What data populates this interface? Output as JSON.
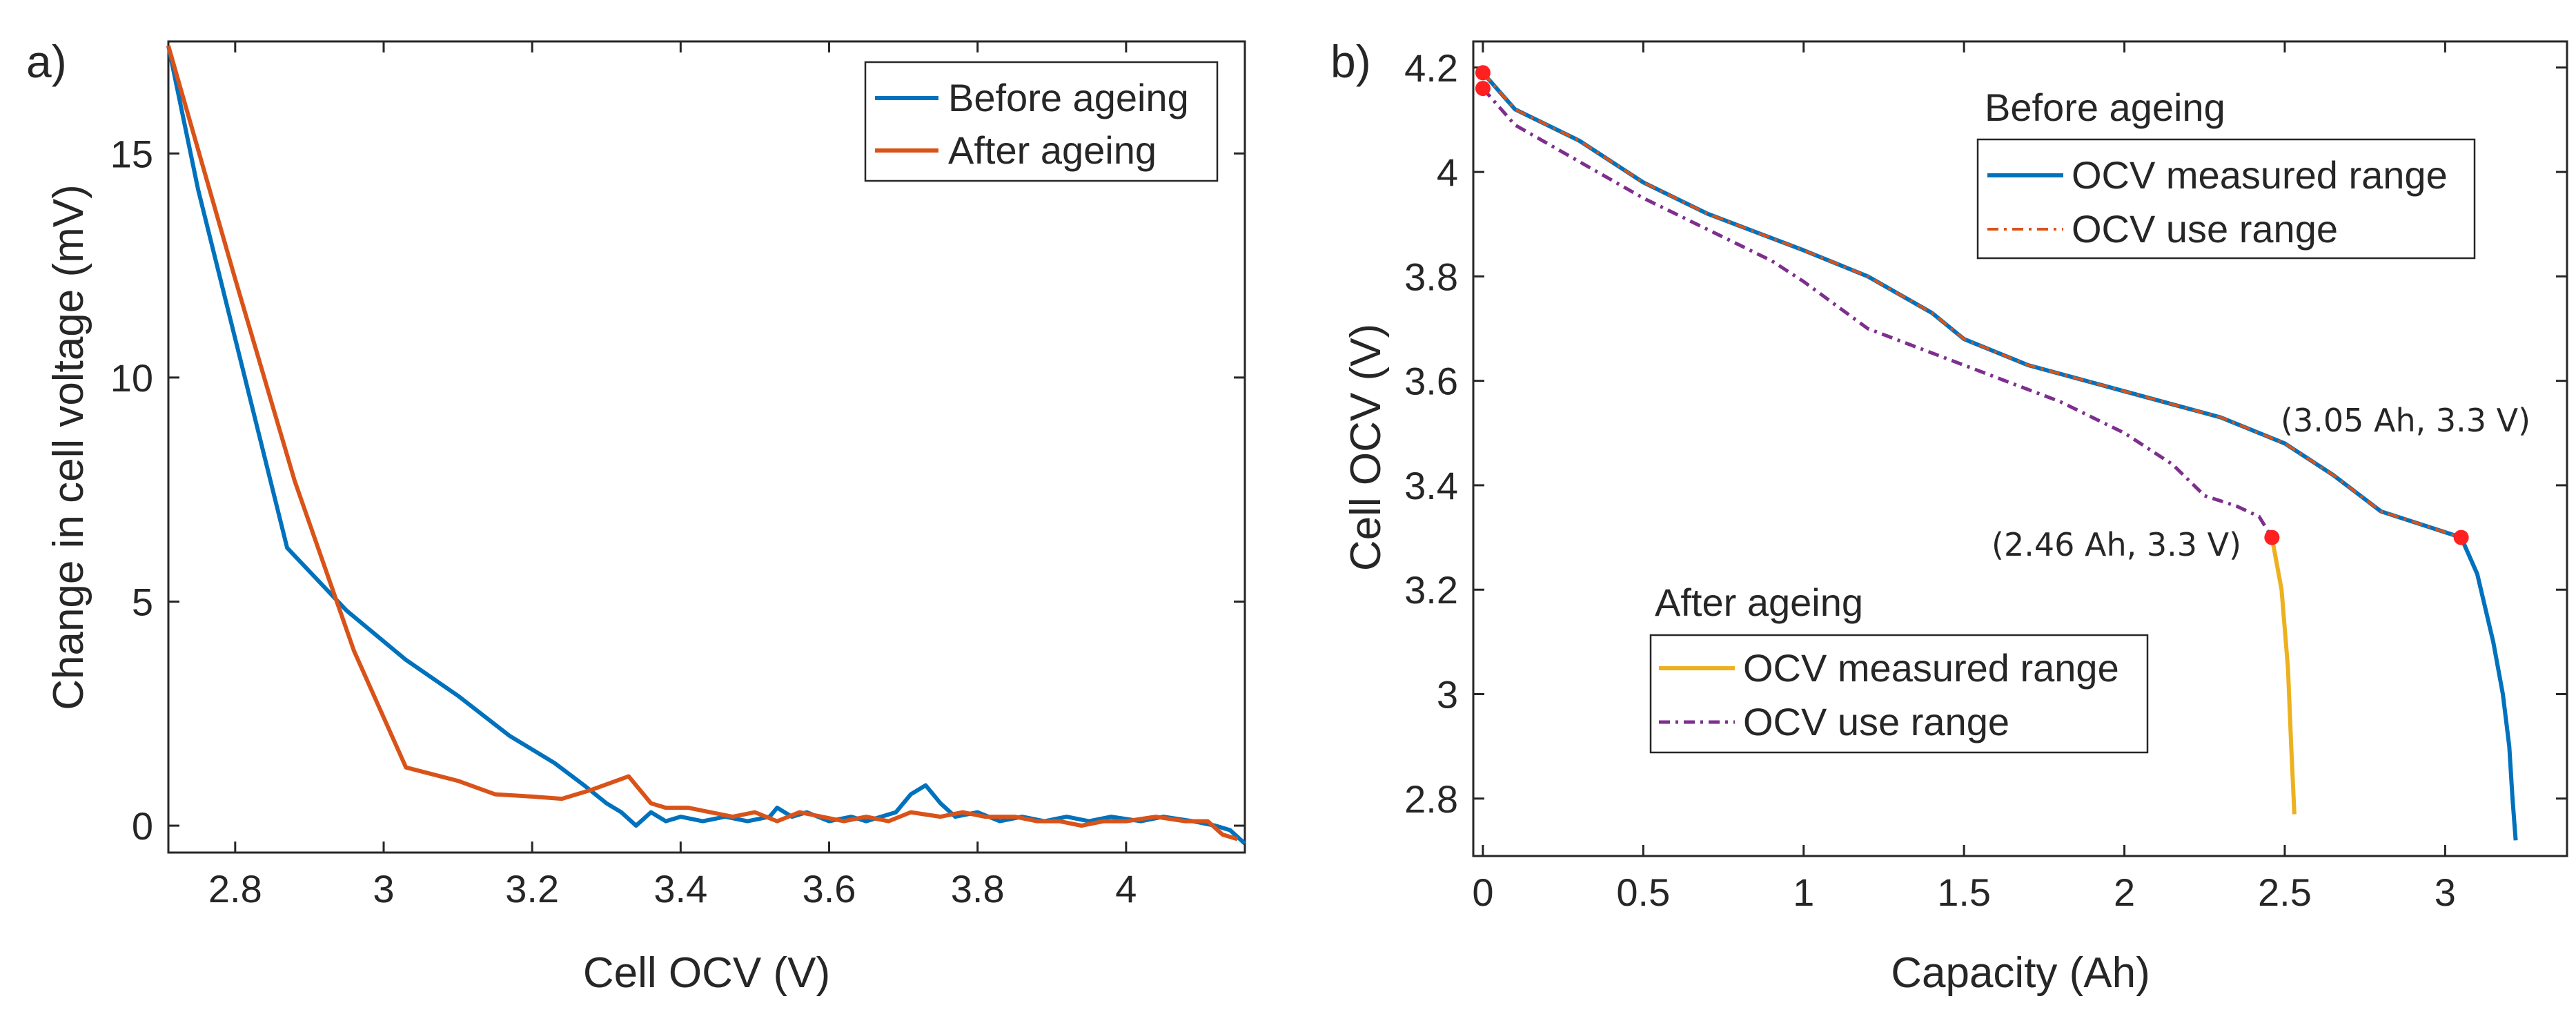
{
  "chart_data": [
    {
      "type": "line",
      "panel_label": "a)",
      "xlabel": "Cell OCV (V)",
      "ylabel": "Change in cell voltage (mV)",
      "xlim": [
        2.71,
        4.16
      ],
      "ylim": [
        -0.6,
        17.5
      ],
      "xticks": [
        2.8,
        3,
        3.2,
        3.4,
        3.6,
        3.8,
        4
      ],
      "xtick_labels": [
        "2.8",
        "3",
        "3.2",
        "3.4",
        "3.6",
        "3.8",
        "4"
      ],
      "yticks": [
        0,
        5,
        10,
        15
      ],
      "ytick_labels": [
        "0",
        "5",
        "10",
        "15"
      ],
      "legend_position": "top-right",
      "series": [
        {
          "name": "Before ageing",
          "color": "#0072BD",
          "points": [
            [
              2.71,
              17.4
            ],
            [
              2.75,
              14.2
            ],
            [
              2.81,
              10.2
            ],
            [
              2.87,
              6.2
            ],
            [
              2.95,
              4.8
            ],
            [
              3.03,
              3.7
            ],
            [
              3.1,
              2.9
            ],
            [
              3.17,
              2.0
            ],
            [
              3.23,
              1.4
            ],
            [
              3.27,
              0.9
            ],
            [
              3.3,
              0.5
            ],
            [
              3.32,
              0.3
            ],
            [
              3.34,
              0.0
            ],
            [
              3.36,
              0.3
            ],
            [
              3.38,
              0.1
            ],
            [
              3.4,
              0.2
            ],
            [
              3.43,
              0.1
            ],
            [
              3.46,
              0.2
            ],
            [
              3.49,
              0.1
            ],
            [
              3.52,
              0.2
            ],
            [
              3.53,
              0.4
            ],
            [
              3.55,
              0.2
            ],
            [
              3.57,
              0.3
            ],
            [
              3.6,
              0.1
            ],
            [
              3.63,
              0.2
            ],
            [
              3.65,
              0.1
            ],
            [
              3.67,
              0.2
            ],
            [
              3.69,
              0.3
            ],
            [
              3.71,
              0.7
            ],
            [
              3.73,
              0.9
            ],
            [
              3.75,
              0.5
            ],
            [
              3.77,
              0.2
            ],
            [
              3.8,
              0.3
            ],
            [
              3.83,
              0.1
            ],
            [
              3.86,
              0.2
            ],
            [
              3.89,
              0.1
            ],
            [
              3.92,
              0.2
            ],
            [
              3.95,
              0.1
            ],
            [
              3.98,
              0.2
            ],
            [
              4.02,
              0.1
            ],
            [
              4.05,
              0.2
            ],
            [
              4.09,
              0.1
            ],
            [
              4.12,
              0.0
            ],
            [
              4.14,
              -0.1
            ],
            [
              4.16,
              -0.4
            ]
          ]
        },
        {
          "name": "After ageing",
          "color": "#D95319",
          "points": [
            [
              2.71,
              17.4
            ],
            [
              2.8,
              12.2
            ],
            [
              2.88,
              7.7
            ],
            [
              2.96,
              3.9
            ],
            [
              3.03,
              1.3
            ],
            [
              3.1,
              1.0
            ],
            [
              3.15,
              0.7
            ],
            [
              3.2,
              0.65
            ],
            [
              3.24,
              0.6
            ],
            [
              3.28,
              0.8
            ],
            [
              3.33,
              1.1
            ],
            [
              3.36,
              0.5
            ],
            [
              3.38,
              0.4
            ],
            [
              3.41,
              0.4
            ],
            [
              3.44,
              0.3
            ],
            [
              3.47,
              0.2
            ],
            [
              3.5,
              0.3
            ],
            [
              3.53,
              0.1
            ],
            [
              3.56,
              0.3
            ],
            [
              3.59,
              0.2
            ],
            [
              3.62,
              0.1
            ],
            [
              3.65,
              0.2
            ],
            [
              3.68,
              0.1
            ],
            [
              3.71,
              0.3
            ],
            [
              3.75,
              0.2
            ],
            [
              3.78,
              0.3
            ],
            [
              3.81,
              0.2
            ],
            [
              3.85,
              0.2
            ],
            [
              3.88,
              0.1
            ],
            [
              3.91,
              0.1
            ],
            [
              3.94,
              0.0
            ],
            [
              3.97,
              0.1
            ],
            [
              4.0,
              0.1
            ],
            [
              4.04,
              0.2
            ],
            [
              4.08,
              0.1
            ],
            [
              4.11,
              0.1
            ],
            [
              4.13,
              -0.2
            ],
            [
              4.15,
              -0.3
            ]
          ]
        }
      ]
    },
    {
      "type": "line",
      "panel_label": "b)",
      "xlabel": "Capacity (Ah)",
      "ylabel": "Cell OCV (V)",
      "xlim": [
        -0.03,
        3.38
      ],
      "ylim": [
        2.69,
        4.25
      ],
      "xticks": [
        0,
        0.5,
        1,
        1.5,
        2,
        2.5,
        3
      ],
      "xtick_labels": [
        "0",
        "0.5",
        "1",
        "1.5",
        "2",
        "2.5",
        "3"
      ],
      "yticks": [
        2.8,
        3,
        3.2,
        3.4,
        3.6,
        3.8,
        4,
        4.2
      ],
      "ytick_labels": [
        "2.8",
        "3",
        "3.2",
        "3.4",
        "3.6",
        "3.8",
        "4",
        "4.2"
      ],
      "legends": [
        {
          "title": "Before ageing",
          "position": "top-right",
          "entries": [
            "OCV measured range",
            "OCV use range"
          ]
        },
        {
          "title": "After ageing",
          "position": "bottom-center",
          "entries": [
            "OCV measured range",
            "OCV use range"
          ]
        }
      ],
      "series": [
        {
          "name": "Before ageing - OCV measured range",
          "color": "#0072BD",
          "style": "solid",
          "points": [
            [
              0,
              4.19
            ],
            [
              0.1,
              4.12
            ],
            [
              0.3,
              4.06
            ],
            [
              0.5,
              3.98
            ],
            [
              0.7,
              3.92
            ],
            [
              1.0,
              3.85
            ],
            [
              1.2,
              3.8
            ],
            [
              1.4,
              3.73
            ],
            [
              1.5,
              3.68
            ],
            [
              1.7,
              3.63
            ],
            [
              2.0,
              3.58
            ],
            [
              2.3,
              3.53
            ],
            [
              2.5,
              3.48
            ],
            [
              2.65,
              3.42
            ],
            [
              2.8,
              3.35
            ],
            [
              3.0,
              3.31
            ],
            [
              3.05,
              3.3
            ],
            [
              3.1,
              3.23
            ],
            [
              3.15,
              3.1
            ],
            [
              3.18,
              3.0
            ],
            [
              3.2,
              2.9
            ],
            [
              3.21,
              2.8
            ],
            [
              3.22,
              2.72
            ]
          ]
        },
        {
          "name": "Before ageing - OCV use range",
          "color": "#D95319",
          "style": "dashdot",
          "points": [
            [
              0,
              4.19
            ],
            [
              0.1,
              4.12
            ],
            [
              0.3,
              4.06
            ],
            [
              0.5,
              3.98
            ],
            [
              0.7,
              3.92
            ],
            [
              1.0,
              3.85
            ],
            [
              1.2,
              3.8
            ],
            [
              1.4,
              3.73
            ],
            [
              1.5,
              3.68
            ],
            [
              1.7,
              3.63
            ],
            [
              2.0,
              3.58
            ],
            [
              2.3,
              3.53
            ],
            [
              2.5,
              3.48
            ],
            [
              2.65,
              3.42
            ],
            [
              2.8,
              3.35
            ],
            [
              3.0,
              3.31
            ],
            [
              3.05,
              3.3
            ]
          ]
        },
        {
          "name": "After ageing - OCV measured range",
          "color": "#EDB120",
          "style": "solid",
          "points": [
            [
              2.46,
              3.3
            ],
            [
              2.49,
              3.2
            ],
            [
              2.51,
              3.05
            ],
            [
              2.52,
              2.9
            ],
            [
              2.53,
              2.77
            ]
          ]
        },
        {
          "name": "After ageing - OCV use range",
          "color": "#7E2F8E",
          "style": "dashdot",
          "points": [
            [
              0,
              4.16
            ],
            [
              0.1,
              4.09
            ],
            [
              0.3,
              4.02
            ],
            [
              0.5,
              3.95
            ],
            [
              0.7,
              3.89
            ],
            [
              0.9,
              3.83
            ],
            [
              1.0,
              3.79
            ],
            [
              1.2,
              3.7
            ],
            [
              1.5,
              3.63
            ],
            [
              1.8,
              3.56
            ],
            [
              2.0,
              3.5
            ],
            [
              2.15,
              3.44
            ],
            [
              2.25,
              3.38
            ],
            [
              2.35,
              3.36
            ],
            [
              2.42,
              3.34
            ],
            [
              2.46,
              3.3
            ]
          ]
        }
      ],
      "markers": [
        {
          "x": 0,
          "y": 4.19,
          "color": "#FF2020"
        },
        {
          "x": 0,
          "y": 4.16,
          "color": "#FF2020"
        },
        {
          "x": 3.05,
          "y": 3.3,
          "color": "#FF2020"
        },
        {
          "x": 2.46,
          "y": 3.3,
          "color": "#FF2020"
        }
      ],
      "annotations": [
        {
          "text": "(3.05 Ah, 3.3 V)",
          "x": 3.05,
          "y": 3.3
        },
        {
          "text": "(2.46 Ah, 3.3 V)",
          "x": 2.46,
          "y": 3.3
        }
      ]
    }
  ]
}
